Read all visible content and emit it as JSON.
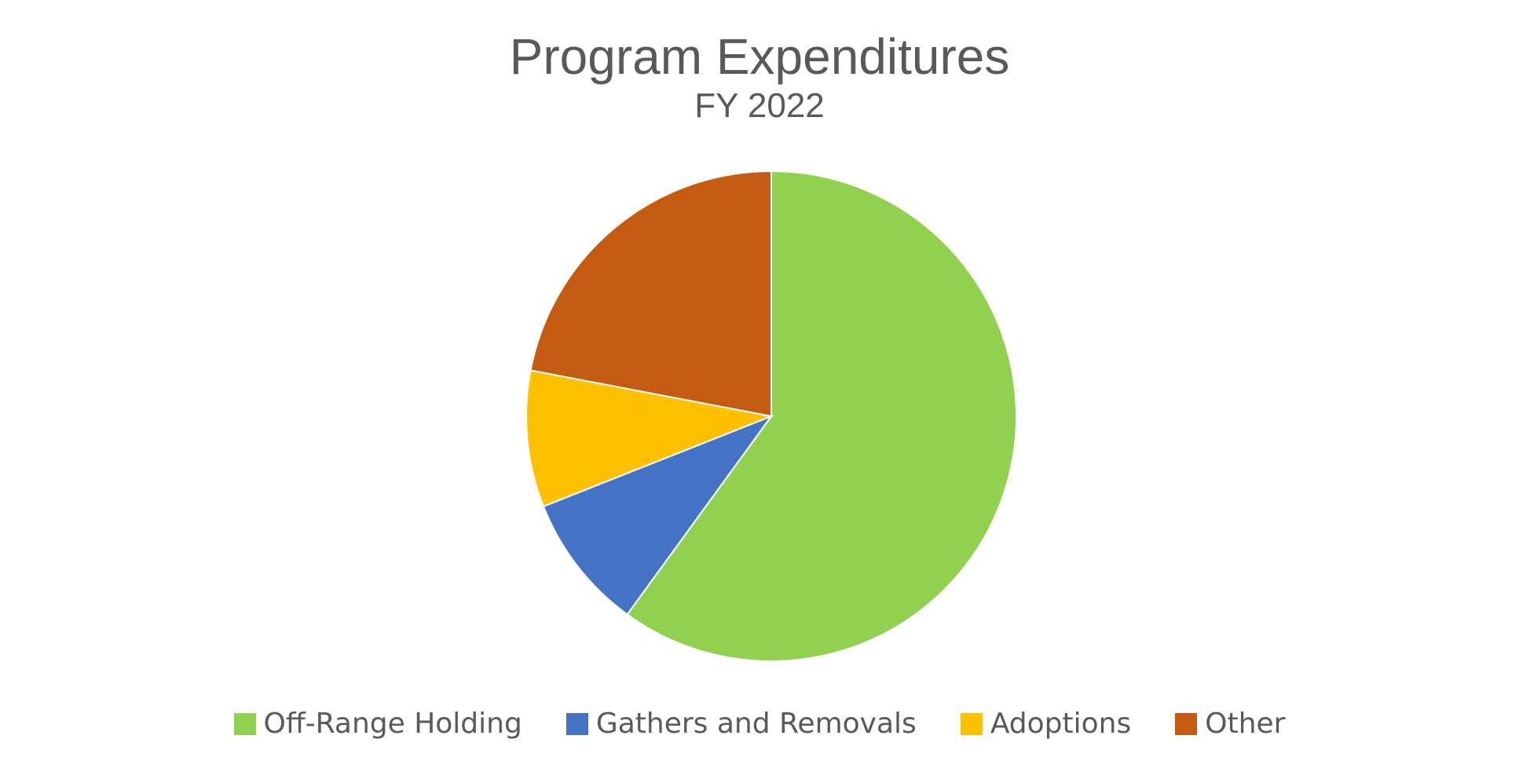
{
  "chart_data": {
    "type": "pie",
    "title": "Program Expenditures",
    "subtitle": "FY 2022",
    "start_angle_deg": 0,
    "direction": "clockwise",
    "slices": [
      {
        "label": "Off-Range Holding",
        "value": 60,
        "color": "#92D050"
      },
      {
        "label": "Gathers and Removals",
        "value": 9,
        "color": "#4472C4"
      },
      {
        "label": "Adoptions",
        "value": 9,
        "color": "#FFC000"
      },
      {
        "label": "Other",
        "value": 22,
        "color": "#C55A11"
      }
    ],
    "legend_position": "bottom"
  }
}
